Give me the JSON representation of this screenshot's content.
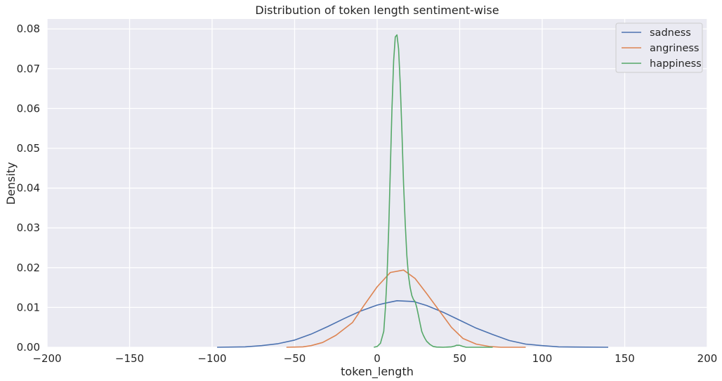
{
  "chart_data": {
    "type": "line",
    "title": "Distribution of token length sentiment-wise",
    "xlabel": "token_length",
    "ylabel": "Density",
    "xlim": [
      -200,
      200
    ],
    "ylim": [
      0,
      0.0825
    ],
    "xticks": [
      -200,
      -150,
      -100,
      -50,
      0,
      50,
      100,
      150,
      200
    ],
    "xtick_labels": [
      "−200",
      "−150",
      "−100",
      "−50",
      "0",
      "50",
      "100",
      "150",
      "200"
    ],
    "yticks": [
      0,
      0.01,
      0.02,
      0.03,
      0.04,
      0.05,
      0.06,
      0.07,
      0.08
    ],
    "ytick_labels": [
      "0.00",
      "0.01",
      "0.02",
      "0.03",
      "0.04",
      "0.05",
      "0.06",
      "0.07",
      "0.08"
    ],
    "grid": true,
    "legend_position": "top-right",
    "background": "#eaeaf2",
    "series": [
      {
        "name": "sadness",
        "color": "#4c72b0",
        "points": [
          [
            -97,
            0
          ],
          [
            -80,
            0.0001
          ],
          [
            -70,
            0.0004
          ],
          [
            -60,
            0.0009
          ],
          [
            -50,
            0.0018
          ],
          [
            -40,
            0.0033
          ],
          [
            -30,
            0.0052
          ],
          [
            -20,
            0.0072
          ],
          [
            -10,
            0.0091
          ],
          [
            0,
            0.0106
          ],
          [
            5,
            0.0111
          ],
          [
            12,
            0.0117
          ],
          [
            22,
            0.0115
          ],
          [
            30,
            0.0105
          ],
          [
            40,
            0.0088
          ],
          [
            50,
            0.0068
          ],
          [
            60,
            0.0048
          ],
          [
            70,
            0.0032
          ],
          [
            80,
            0.0017
          ],
          [
            90,
            0.0008
          ],
          [
            100,
            0.0004
          ],
          [
            110,
            0.0001
          ],
          [
            120,
            5e-05
          ],
          [
            140,
            0
          ]
        ]
      },
      {
        "name": "angriness",
        "color": "#dd8452",
        "points": [
          [
            -55,
            0
          ],
          [
            -45,
            0.0001
          ],
          [
            -40,
            0.0004
          ],
          [
            -33,
            0.0012
          ],
          [
            -25,
            0.003
          ],
          [
            -15,
            0.0062
          ],
          [
            -8,
            0.0105
          ],
          [
            0,
            0.0152
          ],
          [
            8,
            0.0188
          ],
          [
            16,
            0.0194
          ],
          [
            23,
            0.0173
          ],
          [
            30,
            0.0135
          ],
          [
            38,
            0.009
          ],
          [
            45,
            0.005
          ],
          [
            52,
            0.0022
          ],
          [
            60,
            0.0008
          ],
          [
            68,
            0.0002
          ],
          [
            75,
            0
          ],
          [
            90,
            0
          ]
        ]
      },
      {
        "name": "happiness",
        "color": "#55a868",
        "points": [
          [
            -2,
            0
          ],
          [
            0,
            0.0002
          ],
          [
            2,
            0.001
          ],
          [
            4,
            0.004
          ],
          [
            5,
            0.01
          ],
          [
            6,
            0.018
          ],
          [
            7,
            0.03
          ],
          [
            8,
            0.045
          ],
          [
            9,
            0.06
          ],
          [
            10,
            0.072
          ],
          [
            11,
            0.078
          ],
          [
            12,
            0.0785
          ],
          [
            13,
            0.075
          ],
          [
            14,
            0.066
          ],
          [
            15,
            0.054
          ],
          [
            16,
            0.041
          ],
          [
            17,
            0.031
          ],
          [
            18,
            0.023
          ],
          [
            19,
            0.018
          ],
          [
            20,
            0.015
          ],
          [
            21,
            0.013
          ],
          [
            22,
            0.012
          ],
          [
            23,
            0.0115
          ],
          [
            24,
            0.01
          ],
          [
            25,
            0.008
          ],
          [
            26,
            0.006
          ],
          [
            27,
            0.004
          ],
          [
            28,
            0.003
          ],
          [
            29,
            0.0022
          ],
          [
            30,
            0.0015
          ],
          [
            32,
            0.0007
          ],
          [
            34,
            0.0002
          ],
          [
            36,
            5e-05
          ],
          [
            40,
            0
          ],
          [
            45,
            0.0001
          ],
          [
            47,
            0.0003
          ],
          [
            48,
            0.0005
          ],
          [
            50,
            0.0005
          ],
          [
            52,
            0.0002
          ],
          [
            54,
            0
          ],
          [
            70,
            0
          ]
        ]
      }
    ]
  }
}
